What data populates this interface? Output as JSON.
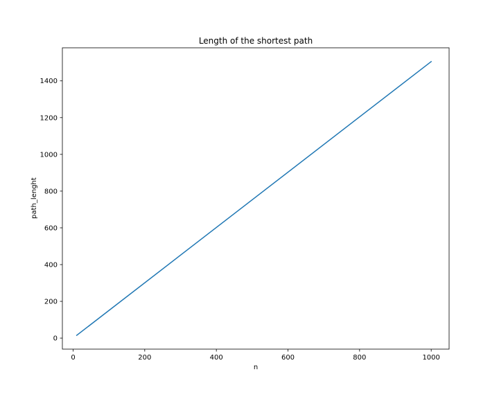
{
  "chart_data": {
    "type": "line",
    "title": "Length of the shortest path",
    "xlabel": "n",
    "ylabel": "path_lenght",
    "xlim": [
      -30,
      1050
    ],
    "ylim": [
      -60,
      1580
    ],
    "xticks": [
      0,
      200,
      400,
      600,
      800,
      1000
    ],
    "yticks": [
      0,
      200,
      400,
      600,
      800,
      1000,
      1200,
      1400
    ],
    "grid": false,
    "legend": "none",
    "series": [
      {
        "color": "#1f77b4",
        "x": [
          10,
          1000
        ],
        "y": [
          15,
          1505
        ]
      }
    ]
  }
}
